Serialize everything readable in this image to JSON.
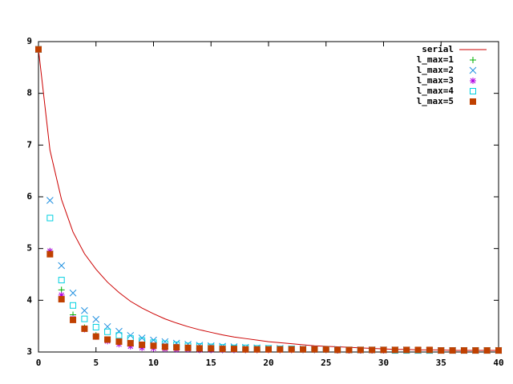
{
  "chart_data": {
    "type": "line",
    "x": [
      0,
      1,
      2,
      3,
      4,
      5,
      6,
      7,
      8,
      9,
      10,
      11,
      12,
      13,
      14,
      15,
      16,
      17,
      18,
      19,
      20,
      21,
      22,
      23,
      24,
      25,
      26,
      27,
      28,
      29,
      30,
      31,
      32,
      33,
      34,
      35,
      36,
      37,
      38,
      39,
      40
    ],
    "series": [
      {
        "name": "serial",
        "color": "#cc0000",
        "style": "line",
        "values": [
          8.85,
          6.9,
          5.95,
          5.32,
          4.9,
          4.6,
          4.35,
          4.15,
          3.98,
          3.85,
          3.74,
          3.64,
          3.56,
          3.49,
          3.43,
          3.38,
          3.33,
          3.29,
          3.26,
          3.23,
          3.2,
          3.18,
          3.16,
          3.14,
          3.12,
          3.11,
          3.1,
          3.09,
          3.08,
          3.07,
          3.06,
          3.05,
          3.05,
          3.04,
          3.04,
          3.04,
          3.03,
          3.03,
          3.03,
          3.03,
          3.03
        ]
      },
      {
        "name": "l_max=1",
        "color": "#00b000",
        "style": "plus",
        "values": [
          8.85,
          4.95,
          4.2,
          3.72,
          3.47,
          3.32,
          3.23,
          3.17,
          3.13,
          3.1,
          3.08,
          3.07,
          3.06,
          3.05,
          3.05,
          3.04,
          3.04,
          3.04,
          3.04,
          3.04,
          3.04,
          3.04,
          3.04,
          3.04,
          3.04,
          3.04,
          3.03,
          3.03,
          3.03,
          3.03,
          3.03,
          3.03,
          3.03,
          3.03,
          3.03,
          3.03,
          3.03,
          3.03,
          3.03,
          3.03,
          3.03
        ]
      },
      {
        "name": "l_max=2",
        "color": "#2090e0",
        "style": "cross",
        "values": [
          8.85,
          5.93,
          4.67,
          4.14,
          3.8,
          3.63,
          3.49,
          3.4,
          3.32,
          3.27,
          3.23,
          3.2,
          3.17,
          3.15,
          3.13,
          3.12,
          3.11,
          3.1,
          3.09,
          3.08,
          3.07,
          3.07,
          3.06,
          3.06,
          3.05,
          3.05,
          3.05,
          3.04,
          3.04,
          3.04,
          3.04,
          3.04,
          3.04,
          3.03,
          3.03,
          3.03,
          3.03,
          3.03,
          3.03,
          3.03,
          3.03
        ]
      },
      {
        "name": "l_max=3",
        "color": "#b000e0",
        "style": "star",
        "values": [
          8.85,
          4.95,
          4.1,
          3.65,
          3.44,
          3.3,
          3.21,
          3.15,
          3.11,
          3.08,
          3.07,
          3.06,
          3.05,
          3.05,
          3.04,
          3.04,
          3.04,
          3.04,
          3.04,
          3.04,
          3.04,
          3.04,
          3.04,
          3.04,
          3.04,
          3.04,
          3.03,
          3.03,
          3.03,
          3.03,
          3.03,
          3.03,
          3.03,
          3.03,
          3.03,
          3.03,
          3.03,
          3.03,
          3.03,
          3.03,
          3.03
        ]
      },
      {
        "name": "l_max=4",
        "color": "#00d0e0",
        "style": "box",
        "values": [
          8.85,
          5.59,
          4.39,
          3.9,
          3.64,
          3.48,
          3.39,
          3.32,
          3.26,
          3.22,
          3.18,
          3.16,
          3.14,
          3.12,
          3.11,
          3.1,
          3.09,
          3.08,
          3.08,
          3.07,
          3.07,
          3.06,
          3.06,
          3.05,
          3.05,
          3.05,
          3.04,
          3.04,
          3.04,
          3.04,
          3.04,
          3.03,
          3.03,
          3.03,
          3.03,
          3.03,
          3.03,
          3.03,
          3.03,
          3.03,
          3.03
        ]
      },
      {
        "name": "l_max=5",
        "color": "#c04000",
        "style": "filled-box",
        "values": [
          8.85,
          4.89,
          4.02,
          3.62,
          3.45,
          3.3,
          3.24,
          3.2,
          3.17,
          3.14,
          3.12,
          3.1,
          3.09,
          3.08,
          3.07,
          3.07,
          3.06,
          3.06,
          3.05,
          3.05,
          3.05,
          3.05,
          3.05,
          3.05,
          3.05,
          3.05,
          3.04,
          3.04,
          3.04,
          3.04,
          3.04,
          3.04,
          3.04,
          3.04,
          3.04,
          3.03,
          3.03,
          3.03,
          3.03,
          3.03,
          3.03
        ]
      }
    ],
    "xlim": [
      0,
      40
    ],
    "xticks": [
      0,
      5,
      10,
      15,
      20,
      25,
      30,
      35,
      40
    ],
    "ylim": [
      3,
      9
    ],
    "yticks": [
      3,
      4,
      5,
      6,
      7,
      8,
      9
    ],
    "grid": false,
    "legend": "upper right"
  }
}
